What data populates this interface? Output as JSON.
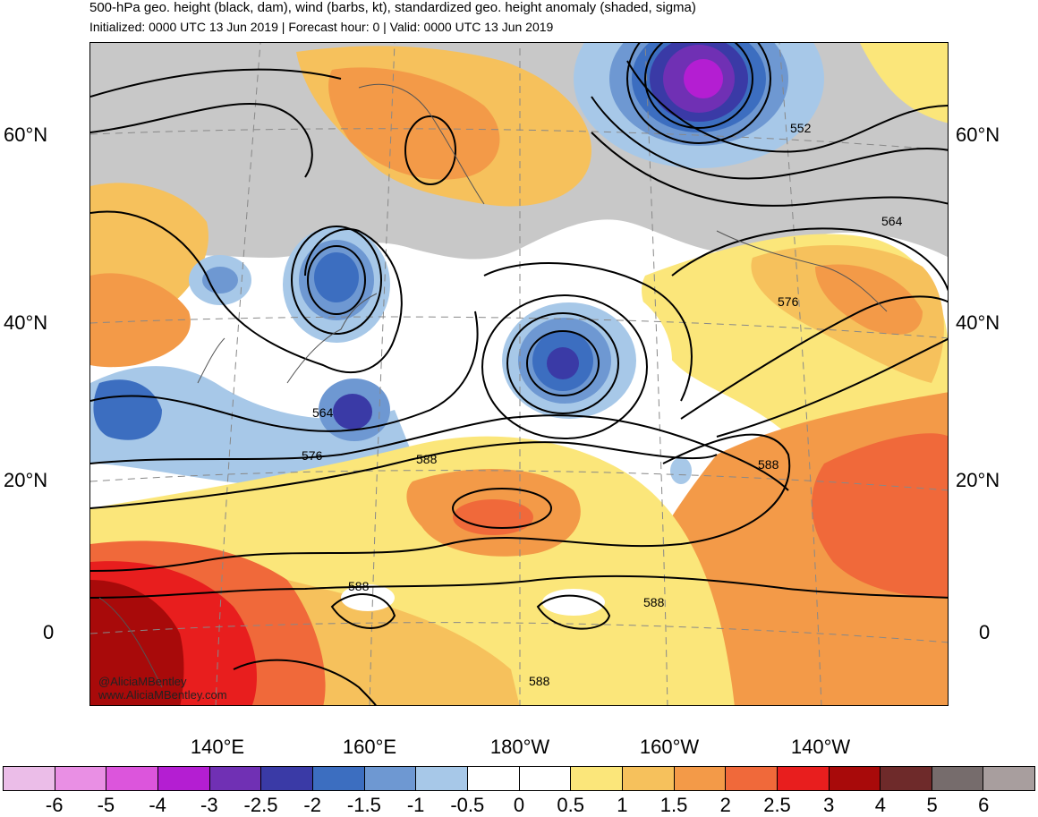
{
  "header": {
    "title": "500-hPa geo. height (black, dam), wind (barbs, kt), standardized geo. height anomaly (shaded, sigma)",
    "subtitle": "Initialized: 0000 UTC 13 Jun 2019 | Forecast hour: 0 | Valid: 0000 UTC 13 Jun 2019"
  },
  "map": {
    "lat_labels_left": [
      "60°N",
      "40°N",
      "20°N",
      "0"
    ],
    "lat_labels_right": [
      "60°N",
      "40°N",
      "20°N",
      "0"
    ],
    "lon_labels": [
      "140°E",
      "160°E",
      "180°W",
      "160°W",
      "140°W"
    ],
    "contour_labels": [
      "552",
      "564",
      "576",
      "564",
      "576",
      "588",
      "588",
      "588",
      "588",
      "588"
    ],
    "credit_line1": "@AliciaMBentley",
    "credit_line2": "www.AliciaMBentley.com"
  },
  "colorbar": {
    "colors": [
      "#ebbde8",
      "#e98fe4",
      "#dc55dc",
      "#b41ed2",
      "#7030b4",
      "#3a3aa6",
      "#3c6ec0",
      "#6e98d2",
      "#a7c8e8",
      "#ffffff",
      "#ffffff",
      "#fbe67a",
      "#f6c15c",
      "#f39a48",
      "#f0693a",
      "#e81e1e",
      "#a80a0a",
      "#6e2a2a",
      "#766c6c",
      "#a89e9e"
    ],
    "labels": [
      "-6",
      "-5",
      "-4",
      "-3",
      "-2.5",
      "-2",
      "-1.5",
      "-1",
      "-0.5",
      "0",
      "0.5",
      "1",
      "1.5",
      "2",
      "2.5",
      "3",
      "4",
      "5",
      "6"
    ]
  }
}
